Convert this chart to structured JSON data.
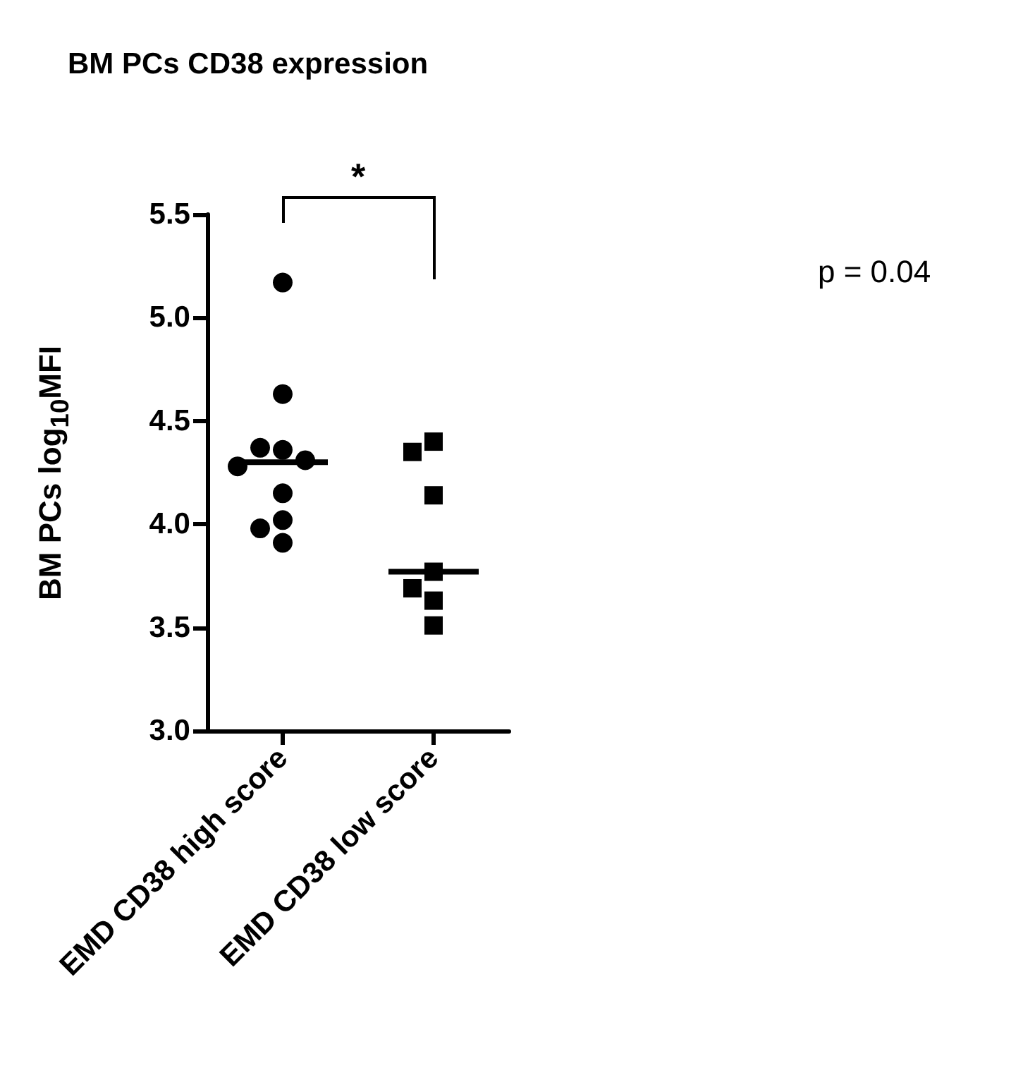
{
  "chart_data": {
    "type": "scatter",
    "title": "BM PCs CD38 expression",
    "ylabel": "BM PCs log$_{10}$MFI",
    "categories": [
      "EMD CD38 high score",
      "EMD CD38 low score"
    ],
    "series": [
      {
        "color": "#000000",
        "marker": "circle",
        "x": [
          "EMD CD38 high score",
          "EMD CD38 high score",
          "EMD CD38 high score",
          "EMD CD38 high score",
          "EMD CD38 high score",
          "EMD CD38 high score",
          "EMD CD38 high score",
          "EMD CD38 high score",
          "EMD CD38 high score",
          "EMD CD38 high score"
        ],
        "values": [
          5.17,
          4.63,
          4.36,
          4.37,
          4.31,
          4.28,
          4.15,
          4.02,
          3.98,
          3.91
        ]
      },
      {
        "type": "scatter",
        "color": "#000000",
        "marker": "square",
        "x": [
          "EMD CD38 low score",
          "EMD CD38 low score",
          "EMD CD38 low score",
          "EMD CD38 low score",
          "EMD CD38 low score",
          "EMD CD38 low score",
          "EMD CD38 low score"
        ],
        "values": [
          4.4,
          4.35,
          4.14,
          3.77,
          3.69,
          3.63,
          3.51
        ]
      },
      {
        "type": "box",
        "color": "#000000",
        "boxes": [
          {
            "low": 4.3,
            "q1": 4.3,
            "median": 4.3,
            "q3": 4.3,
            "high": 4.3
          },
          {
            "low": 3.77,
            "q1": 3.77,
            "median": 3.77,
            "q3": 3.77,
            "high": 3.77
          }
        ]
      }
    ],
    "ylim": [
      3.0,
      5.5
    ],
    "yticks": [
      {
        "value": 3.0,
        "label": "3.0"
      },
      {
        "value": 3.5,
        "label": "3.5"
      },
      {
        "value": 4.0,
        "label": "4.0"
      },
      {
        "value": 4.5,
        "label": "4.5"
      },
      {
        "value": 5.0,
        "label": "5.0"
      },
      {
        "value": 5.5,
        "label": "5.5"
      }
    ],
    "annotations": [
      "*",
      "p = 0.04"
    ],
    "grid": false
  }
}
